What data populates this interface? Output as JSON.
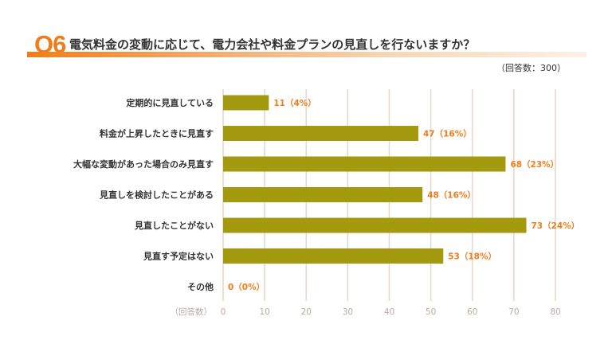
{
  "question": {
    "number": "Q6",
    "title": "電気料金の変動に応じて、電力会社や料金プランの見直しを行ないますか？"
  },
  "respondents_note": "（回答数：300）",
  "colors": {
    "accent": "#ef7d1a",
    "bar": "#a39a10",
    "grid": "#e6d8cc",
    "text": "#333333"
  },
  "chart_data": {
    "type": "bar",
    "orientation": "horizontal",
    "title": "電気料金の変動に応じて、電力会社や料金プランの見直しを行ないますか？",
    "xlabel": "（回答数）",
    "xlim": [
      0,
      80
    ],
    "xticks": [
      0,
      10,
      20,
      30,
      40,
      50,
      60,
      70,
      80
    ],
    "categories": [
      "定期的に見直している",
      "料金が上昇したときに見直す",
      "大幅な変動があった場合のみ見直す",
      "見直しを検討したことがある",
      "見直したことがない",
      "見直す予定はない",
      "その他"
    ],
    "values": [
      11,
      47,
      68,
      48,
      73,
      53,
      0
    ],
    "labels": [
      "11（4%）",
      "47（16%）",
      "68（23%）",
      "48（16%）",
      "73（24%）",
      "53（18%）",
      "0（0%）"
    ],
    "grid": true
  }
}
